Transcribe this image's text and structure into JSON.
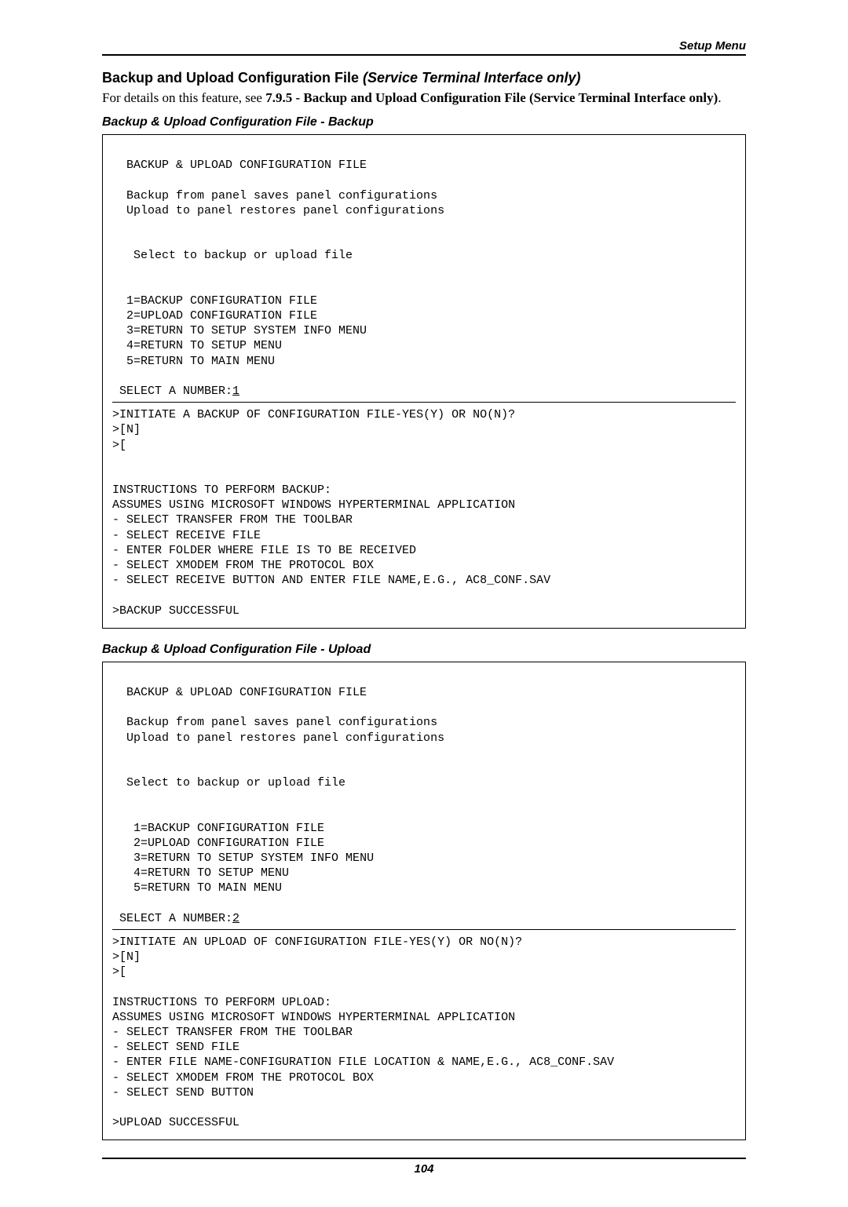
{
  "header": {
    "label": "Setup Menu"
  },
  "section": {
    "title_plain": "Backup and Upload Configuration File ",
    "title_italic": "(Service Terminal Interface only)",
    "intro_pre": "For details on this feature, see ",
    "intro_bold": "7.9.5 - Backup and Upload Configuration File (Service Terminal Interface only)",
    "intro_post": "."
  },
  "backup": {
    "heading": "Backup & Upload Configuration File - Backup",
    "header_line": "BACKUP & UPLOAD CONFIGURATION FILE",
    "desc1": "Backup from panel saves panel configurations",
    "desc2": "Upload to panel restores panel configurations",
    "prompt": " Select to backup or upload file",
    "opt1": "1=BACKUP CONFIGURATION FILE",
    "opt2": "2=UPLOAD CONFIGURATION FILE",
    "opt3": "3=RETURN TO SETUP SYSTEM INFO MENU",
    "opt4": "4=RETURN TO SETUP MENU",
    "opt5": "5=RETURN TO MAIN MENU",
    "select_label": "SELECT A NUMBER:",
    "select_value": "1",
    "confirm": ">INITIATE A BACKUP OF CONFIGURATION FILE-YES(Y) OR NO(N)?",
    "resp1": ">[N]",
    "resp2": ">[",
    "instr_title": "INSTRUCTIONS TO PERFORM BACKUP:",
    "instr_assume": "ASSUMES USING MICROSOFT WINDOWS HYPERTERMINAL APPLICATION",
    "instr_a": "- SELECT TRANSFER FROM THE TOOLBAR",
    "instr_b": "- SELECT RECEIVE FILE",
    "instr_c": "- ENTER FOLDER WHERE FILE IS TO BE RECEIVED",
    "instr_d": "- SELECT XMODEM FROM THE PROTOCOL BOX",
    "instr_e": "- SELECT RECEIVE BUTTON AND ENTER FILE NAME,E.G., AC8_CONF.SAV",
    "success": ">BACKUP SUCCESSFUL"
  },
  "upload": {
    "heading": "Backup & Upload Configuration File - Upload",
    "header_line": "BACKUP & UPLOAD CONFIGURATION FILE",
    "desc1": "Backup from panel saves panel configurations",
    "desc2": "Upload to panel restores panel configurations",
    "prompt": "Select to backup or upload file",
    "opt1": "1=BACKUP CONFIGURATION FILE",
    "opt2": "2=UPLOAD CONFIGURATION FILE",
    "opt3": "3=RETURN TO SETUP SYSTEM INFO MENU",
    "opt4": "4=RETURN TO SETUP MENU",
    "opt5": "5=RETURN TO MAIN MENU",
    "select_label": "SELECT A NUMBER:",
    "select_value": "2",
    "confirm": ">INITIATE AN UPLOAD OF CONFIGURATION FILE-YES(Y) OR NO(N)?",
    "resp1": ">[N]",
    "resp2": ">[",
    "instr_title": "INSTRUCTIONS TO PERFORM UPLOAD:",
    "instr_assume": "ASSUMES USING MICROSOFT WINDOWS HYPERTERMINAL APPLICATION",
    "instr_a": "- SELECT TRANSFER FROM THE TOOLBAR",
    "instr_b": "- SELECT SEND FILE",
    "instr_c": "- ENTER FILE NAME-CONFIGURATION FILE LOCATION & NAME,E.G., AC8_CONF.SAV",
    "instr_d": "- SELECT XMODEM FROM THE PROTOCOL BOX",
    "instr_e": "- SELECT SEND BUTTON",
    "success": ">UPLOAD SUCCESSFUL"
  },
  "footer": {
    "page_number": "104"
  }
}
